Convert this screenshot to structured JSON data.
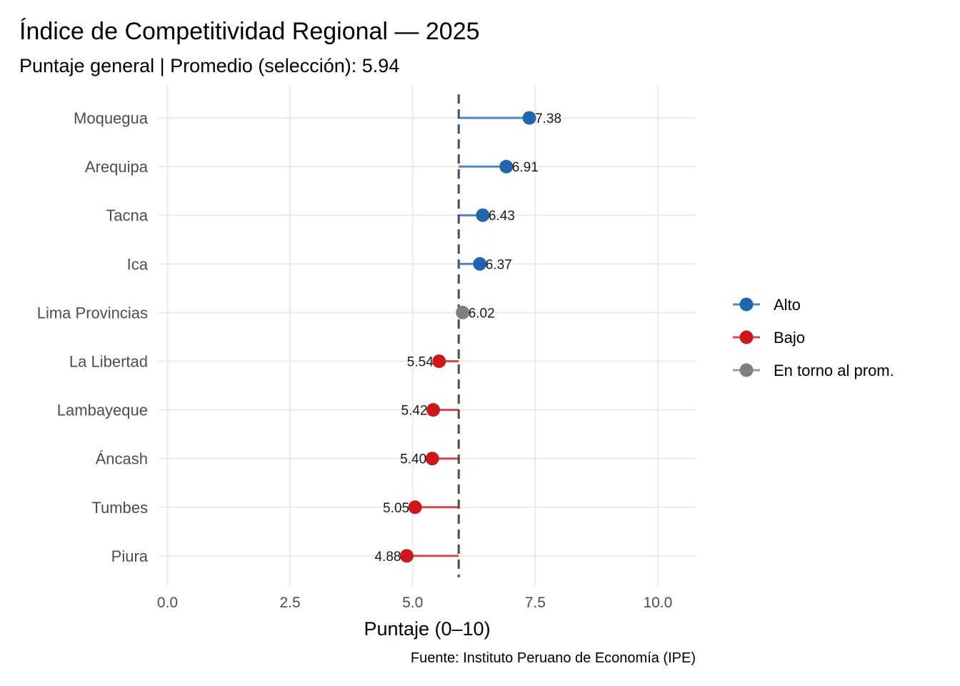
{
  "chart_data": {
    "type": "lollipop",
    "title": "Índice de Competitividad Regional — 2025",
    "subtitle": "Puntaje general | Promedio (selección): 5.94",
    "xlabel": "Puntaje (0–10)",
    "ylabel": "",
    "caption": "Fuente: Instituto Peruano de Economía (IPE)",
    "xlim": [
      0,
      10.8
    ],
    "xticks": [
      0,
      2.5,
      5,
      7.5,
      10
    ],
    "xtick_labels": [
      "0.0",
      "2.5",
      "5.0",
      "7.5",
      "10.0"
    ],
    "reference_line": {
      "value": 5.94,
      "style": "dashed",
      "color": "#555555"
    },
    "grid": true,
    "legend_position": "right",
    "groups": [
      {
        "name": "Alto",
        "color": "#2166ac"
      },
      {
        "name": "Bajo",
        "color": "#cb181d"
      },
      {
        "name": "En torno al prom.",
        "color": "#7f7f7f"
      }
    ],
    "categories": [
      "Moquegua",
      "Arequipa",
      "Tacna",
      "Ica",
      "Lima Provincias",
      "La Libertad",
      "Lambayeque",
      "Áncash",
      "Tumbes",
      "Piura"
    ],
    "values": [
      7.38,
      6.91,
      6.43,
      6.37,
      6.02,
      5.54,
      5.42,
      5.4,
      5.05,
      4.88
    ],
    "value_labels": [
      "7.38",
      "6.91",
      "6.43",
      "6.37",
      "6.02",
      "5.54",
      "5.42",
      "5.40",
      "5.05",
      "4.88"
    ],
    "value_groups": [
      "Alto",
      "Alto",
      "Alto",
      "Alto",
      "En torno al prom.",
      "Bajo",
      "Bajo",
      "Bajo",
      "Bajo",
      "Bajo"
    ]
  }
}
